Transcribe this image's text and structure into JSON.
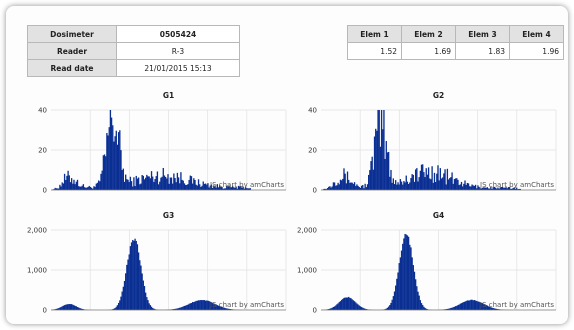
{
  "meta_table": {
    "rows": [
      {
        "label": "Dosimeter",
        "value": "0505424"
      },
      {
        "label": "Reader",
        "value": "R-3"
      },
      {
        "label": "Read date",
        "value": "21/01/2015 15:13"
      }
    ]
  },
  "elements_table": {
    "headers": [
      "Elem 1",
      "Elem 2",
      "Elem 3",
      "Elem 4"
    ],
    "values": [
      "1.52",
      "1.69",
      "1.83",
      "1.96"
    ]
  },
  "credit_text": "JS chart by amCharts",
  "colors": {
    "bar": "#0a2f93"
  },
  "chart_data": [
    {
      "type": "bar",
      "title": "G1",
      "ylim": [
        0,
        40
      ],
      "yticks": [
        "0",
        "20",
        "40"
      ],
      "x_bins": 200,
      "peaks": [
        {
          "center": 15,
          "width": 6,
          "height": 5
        },
        {
          "center": 52,
          "width": 5,
          "height": 34
        },
        {
          "center": 95,
          "width": 22,
          "height": 6
        }
      ],
      "baseline": 1.2,
      "noise": 0.6
    },
    {
      "type": "bar",
      "title": "G2",
      "ylim": [
        0,
        40
      ],
      "yticks": [
        "0",
        "20",
        "40"
      ],
      "x_bins": 200,
      "peaks": [
        {
          "center": 18,
          "width": 7,
          "height": 6
        },
        {
          "center": 50,
          "width": 5,
          "height": 32
        },
        {
          "center": 92,
          "width": 18,
          "height": 8
        }
      ],
      "baseline": 1.0,
      "noise": 0.6
    },
    {
      "type": "bar",
      "title": "G3",
      "ylim": [
        0,
        2000
      ],
      "yticks": [
        "0",
        "1,000",
        "2,000"
      ],
      "x_bins": 200,
      "peaks": [
        {
          "center": 15,
          "width": 6,
          "height": 150
        },
        {
          "center": 70,
          "width": 6,
          "height": 1800
        },
        {
          "center": 128,
          "width": 11,
          "height": 250
        }
      ],
      "baseline": 0,
      "noise": 0.04
    },
    {
      "type": "bar",
      "title": "G4",
      "ylim": [
        0,
        2000
      ],
      "yticks": [
        "0",
        "1,000",
        "2,000"
      ],
      "x_bins": 200,
      "peaks": [
        {
          "center": 22,
          "width": 7,
          "height": 320
        },
        {
          "center": 72,
          "width": 6,
          "height": 1880
        },
        {
          "center": 128,
          "width": 10,
          "height": 250
        }
      ],
      "baseline": 0,
      "noise": 0.04
    }
  ]
}
